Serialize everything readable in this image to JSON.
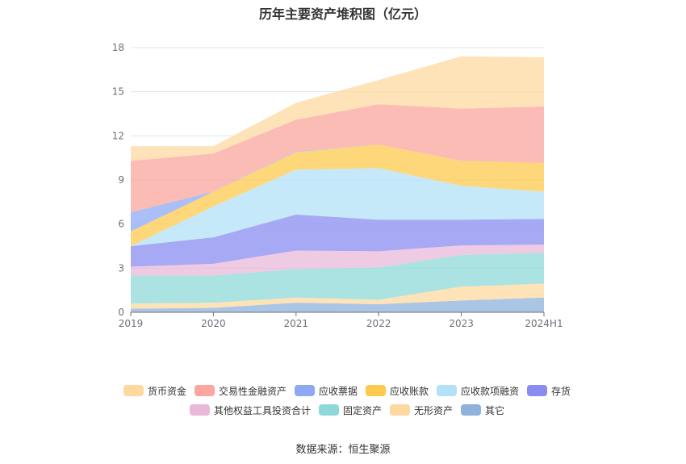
{
  "chart_data": {
    "type": "area",
    "stacked": true,
    "title": "历年主要资产堆积图（亿元）",
    "categories": [
      "2019",
      "2020",
      "2021",
      "2022",
      "2023",
      "2024H1"
    ],
    "ylim": [
      0,
      18
    ],
    "yticks": [
      0,
      3,
      6,
      9,
      12,
      15,
      18
    ],
    "grid": true,
    "legend_position": "bottom",
    "series": [
      {
        "name": "其它",
        "color": "#8fb1dc",
        "values": [
          0.25,
          0.3,
          0.65,
          0.55,
          0.8,
          1.0
        ]
      },
      {
        "name": "无形资产",
        "color": "#fdd9a0",
        "values": [
          0.35,
          0.35,
          0.35,
          0.3,
          0.95,
          0.95
        ]
      },
      {
        "name": "固定资产",
        "color": "#8ed9d8",
        "values": [
          1.9,
          1.85,
          1.95,
          2.2,
          2.15,
          2.1
        ]
      },
      {
        "name": "其他权益工具投资合计",
        "color": "#eab8d9",
        "values": [
          0.6,
          0.8,
          1.25,
          1.1,
          0.65,
          0.55
        ]
      },
      {
        "name": "存货",
        "color": "#8a8cf0",
        "values": [
          1.4,
          1.8,
          2.45,
          2.15,
          1.75,
          1.75
        ]
      },
      {
        "name": "应收款项融资",
        "color": "#b3e1f7",
        "values": [
          0.0,
          2.1,
          3.05,
          3.5,
          2.3,
          1.85
        ]
      },
      {
        "name": "应收账款",
        "color": "#fdc94f",
        "values": [
          1.0,
          1.0,
          1.2,
          1.6,
          1.7,
          1.95
        ]
      },
      {
        "name": "应收票据",
        "color": "#8ea8f5",
        "values": [
          1.3,
          0.0,
          0.05,
          0.0,
          0.0,
          0.0
        ]
      },
      {
        "name": "交易性金融资产",
        "color": "#fba69e",
        "values": [
          3.5,
          2.6,
          2.15,
          2.75,
          3.55,
          3.85
        ]
      },
      {
        "name": "货币资金",
        "color": "#fdd9a0",
        "values": [
          1.0,
          0.5,
          1.15,
          1.65,
          3.55,
          3.35
        ]
      }
    ]
  },
  "legend": {
    "row1": [
      {
        "name": "货币资金",
        "color": "#fdd9a0"
      },
      {
        "name": "交易性金融资产",
        "color": "#fba69e"
      },
      {
        "name": "应收票据",
        "color": "#8ea8f5"
      },
      {
        "name": "应收账款",
        "color": "#fdc94f"
      },
      {
        "name": "应收款项融资",
        "color": "#b3e1f7"
      },
      {
        "name": "存货",
        "color": "#8a8cf0"
      }
    ],
    "row2": [
      {
        "name": "其他权益工具投资合计",
        "color": "#eab8d9"
      },
      {
        "name": "固定资产",
        "color": "#8ed9d8"
      },
      {
        "name": "无形资产",
        "color": "#fdd9a0"
      },
      {
        "name": "其它",
        "color": "#8fb1dc"
      }
    ]
  },
  "source": "数据来源：恒生聚源"
}
